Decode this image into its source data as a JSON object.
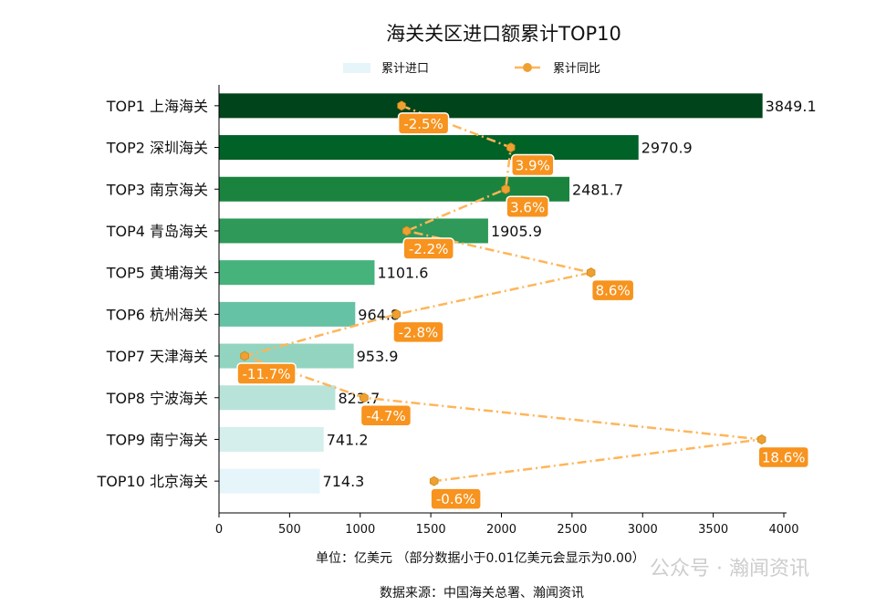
{
  "chart_data": {
    "type": "bar",
    "orientation": "horizontal",
    "title": "海关关区进口额累计TOP10",
    "categories": [
      "TOP1 上海海关",
      "TOP2 深圳海关",
      "TOP3 南京海关",
      "TOP4 青岛海关",
      "TOP5 黄埔海关",
      "TOP6 杭州海关",
      "TOP7 天津海关",
      "TOP8 宁波海关",
      "TOP9 南宁海关",
      "TOP10 北京海关"
    ],
    "series": [
      {
        "name": "累计进口",
        "type": "bar",
        "values": [
          3849.1,
          2970.9,
          2481.7,
          1905.9,
          1101.6,
          964.8,
          953.9,
          823.7,
          741.2,
          714.3
        ],
        "data_labels": [
          "3849.1",
          "2970.9",
          "2481.7",
          "1905.9",
          "1101.6",
          "964.8",
          "953.9",
          "823.7",
          "741.2",
          "714.3"
        ],
        "colors": [
          "#00441b",
          "#006227",
          "#1a843f",
          "#2e9958",
          "#46b37c",
          "#66c2a4",
          "#92d4bf",
          "#b8e3d9",
          "#d4efec",
          "#e6f5f9"
        ]
      },
      {
        "name": "累计同比",
        "type": "line",
        "axis": "secondary-x-hidden",
        "unit": "%",
        "values": [
          -2.5,
          3.9,
          3.6,
          -2.2,
          8.6,
          -2.8,
          -11.7,
          -4.7,
          18.6,
          -0.6
        ],
        "data_labels": [
          "-2.5%",
          "3.9%",
          "3.6%",
          "-2.2%",
          "8.6%",
          "-2.8%",
          "-11.7%",
          "-4.7%",
          "18.6%",
          "-0.6%"
        ],
        "color": "#ffb55a",
        "marker_color": "#f0a030",
        "label_bg": "#f7931e",
        "line_style": "dash-dot",
        "marker": "hexagon"
      }
    ],
    "xlim": [
      0,
      4000
    ],
    "xticks": [
      0,
      500,
      1000,
      1500,
      2000,
      2500,
      3000,
      3500,
      4000
    ],
    "secondary_xlim": [
      -13.2,
      19.9
    ],
    "xlabel": "单位：亿美元  （部分数据小于0.01亿美元会显示为0.00）",
    "source": "数据来源：中国海关总署、瀚闻资讯",
    "legend": {
      "placement": "top-center",
      "entries": [
        "累计进口",
        "累计同比"
      ]
    },
    "grid": false,
    "watermark": "公众号 · 瀚闻资讯"
  }
}
